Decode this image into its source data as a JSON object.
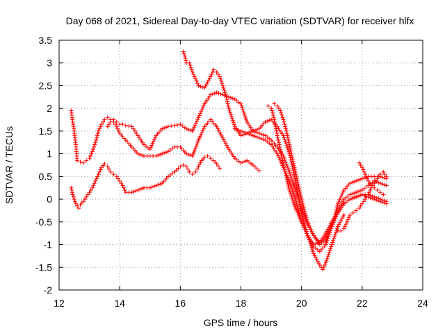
{
  "chart_data": {
    "type": "scatter",
    "title": "Day 068 of 2021, Sidereal Day-to-day VTEC variation (SDTVAR) for receiver hlfx",
    "xlabel": "GPS time / hours",
    "ylabel": "SDTVAR / TECUs",
    "xlim": [
      12,
      24
    ],
    "ylim": [
      -2,
      3.5
    ],
    "xticks": [
      "12",
      "14",
      "16",
      "18",
      "20",
      "22",
      "24"
    ],
    "yticks": [
      "-2",
      "-1.5",
      "-1",
      "-0.5",
      "0",
      "0.5",
      "1",
      "1.5",
      "2",
      "2.5",
      "3",
      "3.5"
    ],
    "grid": true,
    "marker": "+",
    "color": "#ff0000",
    "series": [
      {
        "x": [
          12.4,
          12.45,
          12.5,
          12.55,
          12.6,
          12.65,
          12.7,
          12.8,
          12.9,
          13.0,
          13.1,
          13.2,
          13.3,
          13.4,
          13.5,
          13.6,
          13.7,
          13.8,
          13.9,
          14.0,
          14.1,
          14.2,
          14.4,
          14.6,
          14.8,
          15.0,
          15.2,
          15.4,
          15.6,
          15.8,
          16.0,
          16.1,
          16.2,
          16.3,
          16.4,
          16.5,
          16.6,
          16.7,
          16.8,
          16.9,
          17.0,
          17.1,
          17.2,
          17.3
        ],
        "y": [
          0.25,
          0.1,
          0.0,
          -0.1,
          -0.15,
          -0.2,
          -0.12,
          -0.05,
          0.05,
          0.15,
          0.25,
          0.4,
          0.55,
          0.7,
          0.78,
          0.72,
          0.6,
          0.55,
          0.5,
          0.4,
          0.3,
          0.15,
          0.15,
          0.2,
          0.25,
          0.25,
          0.3,
          0.35,
          0.5,
          0.6,
          0.72,
          0.75,
          0.72,
          0.6,
          0.55,
          0.6,
          0.72,
          0.85,
          0.92,
          0.95,
          0.9,
          0.85,
          0.78,
          0.68
        ]
      },
      {
        "x": [
          12.4,
          12.45,
          12.5,
          12.55,
          12.6,
          12.7,
          12.8,
          12.9,
          13.0,
          13.1,
          13.2,
          13.3,
          13.4,
          13.5,
          13.6,
          13.7,
          13.8,
          13.9,
          14.0,
          14.2,
          14.4,
          14.6,
          14.8,
          15.0,
          15.2,
          15.4,
          15.6,
          15.8,
          16.0,
          16.2,
          16.4,
          16.6,
          16.8,
          17.0,
          17.2,
          17.4,
          17.6,
          17.8,
          18.0,
          18.2,
          18.4,
          18.6
        ],
        "y": [
          1.95,
          1.7,
          1.5,
          1.2,
          0.85,
          0.82,
          0.8,
          0.85,
          0.9,
          1.05,
          1.25,
          1.5,
          1.65,
          1.75,
          1.8,
          1.75,
          1.7,
          1.6,
          1.45,
          1.3,
          1.15,
          1.0,
          0.95,
          0.95,
          0.95,
          1.0,
          1.05,
          1.15,
          1.15,
          1.0,
          0.95,
          1.3,
          1.6,
          1.75,
          1.6,
          1.35,
          1.1,
          0.9,
          0.8,
          0.85,
          0.75,
          0.63
        ]
      },
      {
        "x": [
          13.6,
          13.7,
          13.8,
          13.9,
          14.0,
          14.1,
          14.2,
          14.4,
          14.5,
          14.6,
          14.8,
          15.0,
          15.2,
          15.4,
          15.6,
          15.8,
          16.0,
          16.2,
          16.4,
          16.6,
          16.8,
          17.0,
          17.2,
          17.4,
          17.6,
          17.8,
          18.0,
          18.2,
          18.4,
          18.6,
          18.8,
          19.0,
          19.2,
          19.4,
          19.6,
          19.8,
          20.0,
          20.2,
          20.4,
          20.6,
          20.7,
          20.8,
          21.0,
          21.2,
          21.4
        ],
        "y": [
          1.6,
          1.7,
          1.75,
          1.7,
          1.65,
          1.65,
          1.62,
          1.6,
          1.5,
          1.4,
          1.2,
          1.1,
          1.4,
          1.55,
          1.6,
          1.62,
          1.65,
          1.55,
          1.5,
          1.8,
          2.1,
          2.3,
          2.35,
          2.3,
          2.25,
          2.2,
          2.1,
          1.7,
          1.5,
          1.55,
          1.7,
          1.75,
          1.6,
          1.4,
          1.0,
          0.4,
          -0.3,
          -0.8,
          -1.2,
          -1.45,
          -1.55,
          -1.4,
          -1.0,
          -0.6,
          -0.35
        ]
      },
      {
        "x": [
          16.1,
          16.15,
          16.2,
          16.3,
          16.4,
          16.5,
          16.6,
          16.8,
          17.0,
          17.1,
          17.2,
          17.3,
          17.4,
          17.5,
          17.6,
          17.8,
          18.0,
          18.2,
          18.4,
          18.6,
          18.8,
          19.0,
          19.2,
          19.4,
          19.6,
          19.8,
          20.0,
          20.2,
          20.4,
          20.6,
          20.8,
          21.0,
          21.2,
          21.4,
          21.6,
          21.8,
          22.0,
          22.2,
          22.4,
          22.6,
          22.8
        ],
        "y": [
          3.25,
          3.15,
          3.0,
          3.0,
          2.8,
          2.65,
          2.5,
          2.45,
          2.7,
          2.85,
          2.8,
          2.7,
          2.5,
          2.3,
          2.0,
          1.6,
          1.4,
          1.45,
          1.4,
          1.35,
          1.3,
          1.2,
          1.0,
          0.7,
          0.4,
          0.0,
          -0.5,
          -0.8,
          -1.05,
          -1.15,
          -1.0,
          -0.6,
          -0.1,
          0.2,
          0.35,
          0.4,
          0.45,
          0.5,
          0.5,
          0.5,
          0.45
        ]
      },
      {
        "x": [
          18.9,
          19.0,
          19.05,
          19.1,
          19.2,
          19.3,
          19.4,
          19.6,
          19.8,
          20.0,
          20.2,
          20.4,
          20.6,
          20.8,
          21.0,
          21.2,
          21.4,
          21.6,
          21.8,
          22.0,
          22.2,
          22.4,
          22.6,
          22.8
        ],
        "y": [
          2.05,
          2.0,
          1.9,
          1.75,
          1.4,
          1.1,
          0.75,
          0.2,
          -0.2,
          -0.5,
          -0.8,
          -1.0,
          -0.95,
          -0.75,
          -0.5,
          -0.25,
          0.0,
          0.1,
          0.15,
          0.2,
          0.3,
          0.4,
          0.35,
          0.3
        ]
      },
      {
        "x": [
          19.1,
          19.2,
          19.3,
          19.4,
          19.5,
          19.6,
          19.8,
          20.0,
          20.2,
          20.4,
          20.6,
          20.8,
          21.0,
          21.2,
          21.4,
          21.6,
          21.8,
          22.0,
          22.2,
          22.4,
          22.6,
          22.8
        ],
        "y": [
          2.1,
          2.05,
          1.95,
          1.75,
          1.5,
          1.2,
          0.6,
          0.0,
          -0.5,
          -0.8,
          -1.0,
          -0.9,
          -0.6,
          -0.3,
          -0.1,
          0.0,
          0.05,
          0.1,
          0.1,
          0.05,
          0.0,
          -0.05
        ]
      },
      {
        "x": [
          17.8,
          18.0,
          18.2,
          18.4,
          18.6,
          18.8,
          19.0,
          19.2,
          19.4,
          19.6,
          19.8,
          20.0,
          20.2,
          20.4,
          20.6,
          20.8,
          21.0,
          21.2,
          21.4,
          21.6,
          21.8,
          22.0,
          22.2,
          22.4,
          22.6,
          22.8
        ],
        "y": [
          1.55,
          1.5,
          1.45,
          1.5,
          1.45,
          1.4,
          1.3,
          1.15,
          0.95,
          0.6,
          0.2,
          -0.2,
          -0.55,
          -0.8,
          -0.95,
          -0.85,
          -0.55,
          -0.3,
          -0.1,
          0.0,
          0.05,
          0.1,
          0.05,
          0.0,
          -0.05,
          -0.1
        ]
      },
      {
        "x": [
          21.2,
          21.3,
          21.4,
          21.5,
          21.6,
          21.7,
          21.8,
          21.9,
          22.0,
          22.1,
          22.2,
          22.3,
          22.4,
          22.5,
          22.6,
          22.7,
          22.8
        ],
        "y": [
          -0.7,
          -0.7,
          -0.65,
          -0.5,
          -0.35,
          -0.3,
          -0.25,
          -0.2,
          -0.1,
          0.0,
          0.1,
          0.25,
          0.35,
          0.45,
          0.55,
          0.6,
          0.5
        ]
      },
      {
        "x": [
          21.9,
          22.0,
          22.1,
          22.2,
          22.3,
          22.4,
          22.5,
          22.6,
          22.7
        ],
        "y": [
          0.8,
          0.7,
          0.55,
          0.4,
          0.3,
          0.25,
          0.2,
          0.15,
          0.1
        ]
      }
    ]
  }
}
